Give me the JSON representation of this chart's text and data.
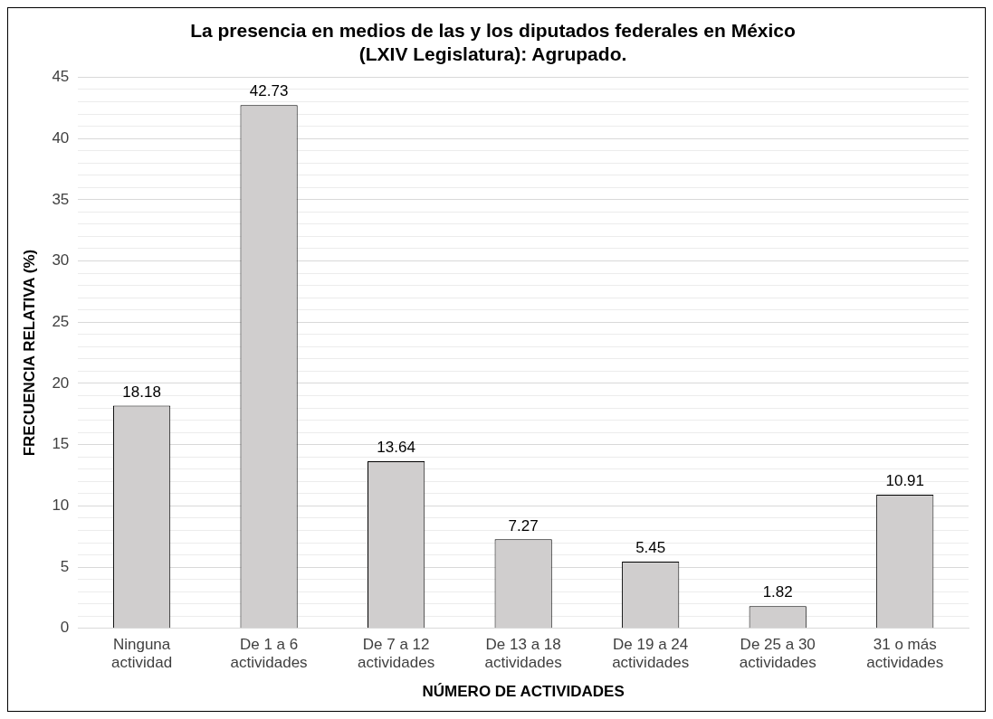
{
  "chart_data": {
    "type": "bar",
    "title": "La presencia en medios de las y los diputados federales en México (LXIV Legislatura): Agrupado.",
    "xlabel": "NÚMERO DE ACTIVIDADES",
    "ylabel": "FRECUENCIA RELATIVA (%)",
    "categories": [
      "Ninguna actividad",
      "De 1 a 6 actividades",
      "De 7 a 12 actividades",
      "De 13 a 18 actividades",
      "De 19 a 24 actividades",
      "De 25 a 30 actividades",
      "31 o más actividades"
    ],
    "values": [
      18.18,
      42.73,
      13.64,
      7.27,
      5.45,
      1.82,
      10.91
    ],
    "color": "#d0cece",
    "data_labels": true,
    "grid": "y",
    "legend": false,
    "ylim": [
      0,
      45
    ],
    "yticks": [
      0,
      {
        "value": 1,
        "label": null
      },
      {
        "value": 2,
        "label": null
      },
      {
        "value": 3,
        "label": null
      },
      {
        "value": 4,
        "label": null
      },
      5,
      {
        "value": 6,
        "label": null
      },
      {
        "value": 7,
        "label": null
      },
      {
        "value": 8,
        "label": null
      },
      {
        "value": 9,
        "label": null
      },
      10,
      {
        "value": 11,
        "label": null
      },
      {
        "value": 12,
        "label": null
      },
      {
        "value": 13,
        "label": null
      },
      {
        "value": 14,
        "label": null
      },
      15,
      {
        "value": 16,
        "label": null
      },
      {
        "value": 17,
        "label": null
      },
      {
        "value": 18,
        "label": null
      },
      {
        "value": 19,
        "label": null
      },
      20,
      {
        "value": 21,
        "label": null
      },
      {
        "value": 22,
        "label": null
      },
      {
        "value": 23,
        "label": null
      },
      {
        "value": 24,
        "label": null
      },
      25,
      {
        "value": 26,
        "label": null
      },
      {
        "value": 27,
        "label": null
      },
      {
        "value": 28,
        "label": null
      },
      {
        "value": 29,
        "label": null
      },
      30,
      {
        "value": 31,
        "label": null
      },
      {
        "value": 32,
        "label": null
      },
      {
        "value": 33,
        "label": null
      },
      {
        "value": 34,
        "label": null
      },
      35,
      {
        "value": 36,
        "label": null
      },
      {
        "value": 37,
        "label": null
      },
      {
        "value": 38,
        "label": null
      },
      {
        "value": 39,
        "label": null
      },
      40,
      {
        "value": 41,
        "label": null
      },
      {
        "value": 42,
        "label": null
      },
      {
        "value": 43,
        "label": null
      },
      {
        "value": 44,
        "label": null
      },
      45
    ]
  }
}
